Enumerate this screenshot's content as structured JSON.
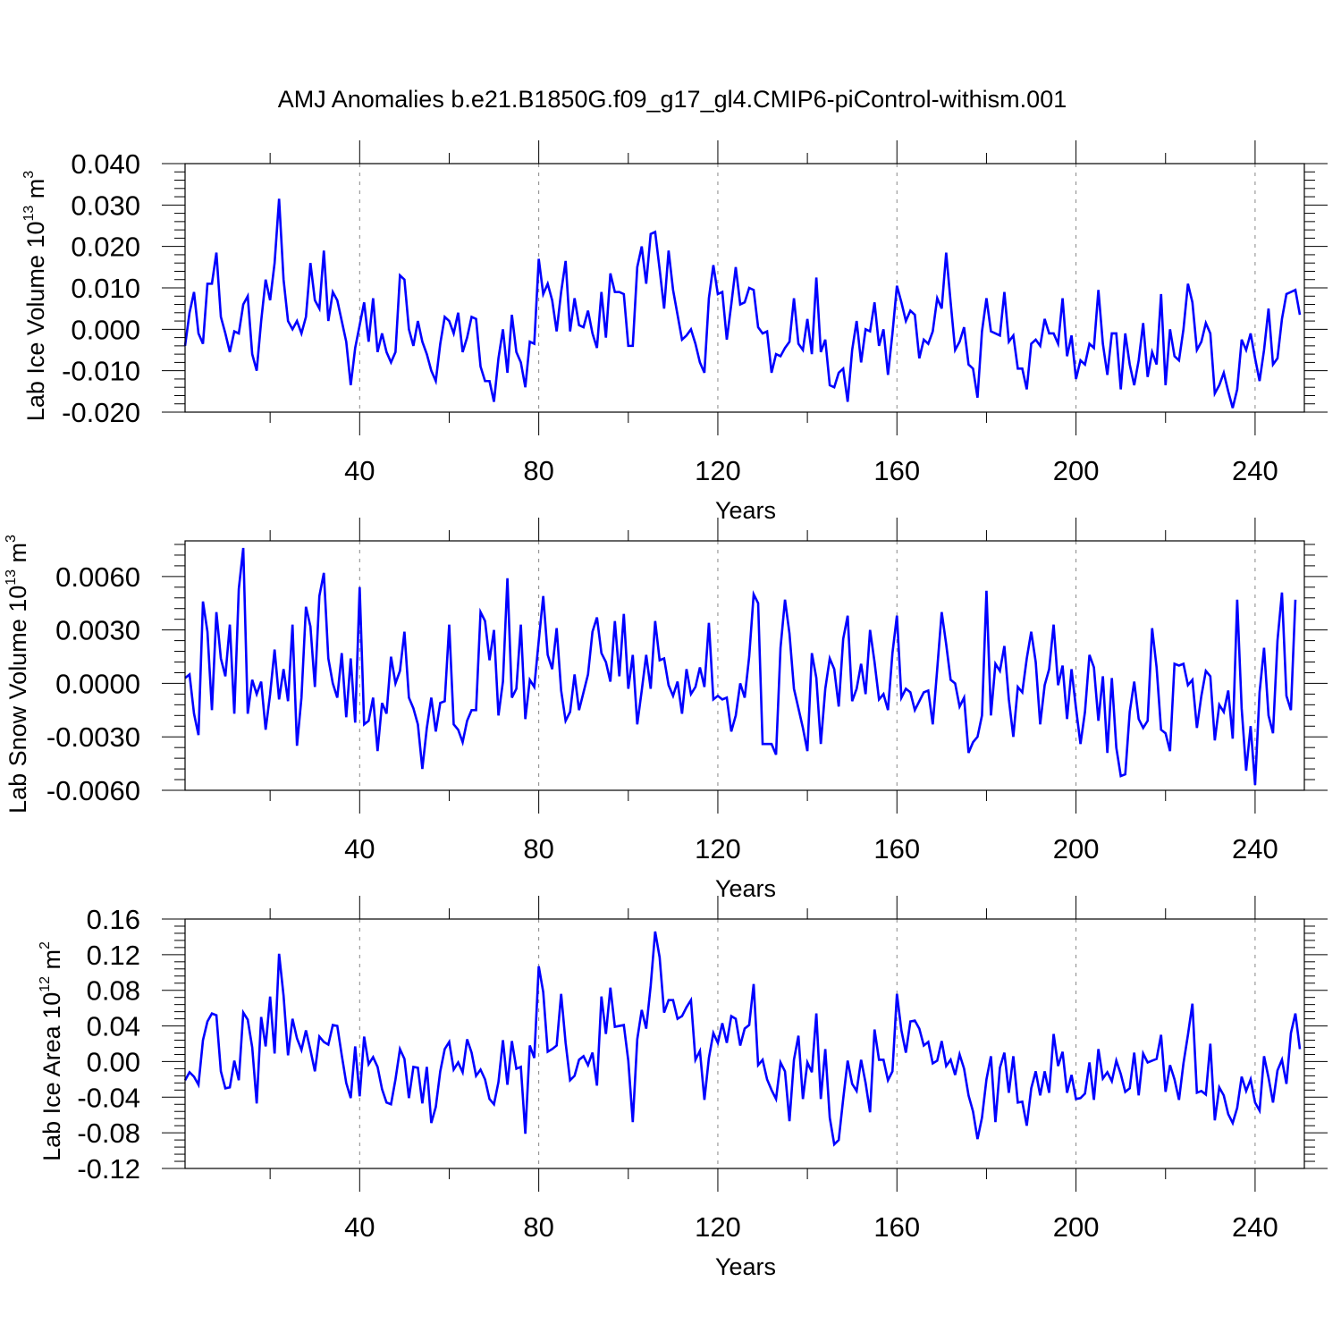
{
  "title": "AMJ Anomalies b.e21.B1850G.f09_g17_gl4.CMIP6-piControl-withism.001",
  "colors": {
    "series": "#0000ff",
    "axis": "#000000",
    "grid": "#888888"
  },
  "chart_data": [
    {
      "type": "line",
      "ylabel": {
        "text": "Lab Ice Volume 10",
        "exp": "13",
        "unit": " m",
        "unit_exp": "3"
      },
      "xlabel": "Years",
      "xlim": [
        1,
        251
      ],
      "ylim": [
        -0.02,
        0.04
      ],
      "xticks": [
        "40",
        "80",
        "120",
        "160",
        "200",
        "240"
      ],
      "yticks": [
        {
          "v": -0.02,
          "label": "-0.020"
        },
        {
          "v": -0.01,
          "label": "-0.010"
        },
        {
          "v": 0.0,
          "label": "0.000"
        },
        {
          "v": 0.01,
          "label": "0.010"
        },
        {
          "v": 0.02,
          "label": "0.020"
        },
        {
          "v": 0.03,
          "label": "0.030"
        },
        {
          "v": 0.04,
          "label": "0.040"
        }
      ],
      "grid": "dashed vertical at 40,80,120,160,200,240",
      "values": [
        -0.004,
        0.004,
        0.009,
        -0.001,
        -0.0035,
        0.011,
        0.011,
        0.0185,
        0.003,
        -0.001,
        -0.0055,
        -0.0005,
        -0.001,
        0.006,
        0.008,
        -0.006,
        -0.01,
        0.002,
        0.012,
        0.007,
        0.016,
        0.0315,
        0.012,
        0.002,
        0.0,
        0.002,
        -0.001,
        0.003,
        0.016,
        0.007,
        0.005,
        0.019,
        0.002,
        0.009,
        0.007,
        0.002,
        -0.003,
        -0.0135,
        -0.0045,
        0.001,
        0.0065,
        -0.003,
        0.0075,
        -0.0055,
        -0.001,
        -0.0055,
        -0.008,
        -0.0055,
        0.013,
        0.012,
        0.0,
        -0.004,
        0.002,
        -0.003,
        -0.006,
        -0.01,
        -0.0125,
        -0.0035,
        0.003,
        0.002,
        -0.001,
        0.004,
        -0.0055,
        -0.002,
        0.003,
        0.0025,
        -0.009,
        -0.0125,
        -0.0125,
        -0.0175,
        -0.007,
        0.0,
        -0.0105,
        0.0035,
        -0.0055,
        -0.008,
        -0.014,
        -0.003,
        -0.0035,
        0.017,
        0.0085,
        0.011,
        0.007,
        -0.0005,
        0.009,
        0.0165,
        -0.0005,
        0.0075,
        0.001,
        0.0005,
        0.0045,
        -0.001,
        -0.0045,
        0.009,
        -0.002,
        0.0135,
        0.009,
        0.009,
        0.0085,
        -0.004,
        -0.004,
        0.015,
        0.02,
        0.011,
        0.023,
        0.0235,
        0.0145,
        0.005,
        0.019,
        0.0095,
        0.0035,
        -0.0025,
        -0.0015,
        0.0,
        -0.0035,
        -0.008,
        -0.0105,
        0.0075,
        0.0155,
        0.0085,
        0.009,
        -0.0025,
        0.006,
        0.015,
        0.006,
        0.0065,
        0.01,
        0.0095,
        0.0005,
        -0.001,
        -0.0005,
        -0.0105,
        -0.006,
        -0.0065,
        -0.0045,
        -0.003,
        0.0075,
        -0.0035,
        -0.005,
        0.0025,
        -0.006,
        0.0125,
        -0.0055,
        -0.0025,
        -0.0135,
        -0.014,
        -0.0105,
        -0.0095,
        -0.0175,
        -0.005,
        0.002,
        -0.008,
        0.0,
        -0.0005,
        0.0065,
        -0.004,
        0.0,
        -0.011,
        -0.001,
        0.0105,
        0.0065,
        0.002,
        0.0045,
        0.0035,
        -0.007,
        -0.0025,
        -0.0035,
        -0.0005,
        0.0075,
        0.005,
        0.0185,
        0.0065,
        -0.005,
        -0.003,
        0.0005,
        -0.0085,
        -0.0095,
        -0.0165,
        -0.0005,
        0.0075,
        -0.0005,
        -0.001,
        -0.0015,
        0.009,
        -0.003,
        -0.0015,
        -0.0095,
        -0.0095,
        -0.0145,
        -0.0035,
        -0.0025,
        -0.004,
        0.0025,
        -0.001,
        -0.001,
        -0.0035,
        0.0075,
        -0.0065,
        -0.0015,
        -0.012,
        -0.0075,
        -0.0085,
        -0.0035,
        -0.0045,
        0.0095,
        -0.0035,
        -0.011,
        -0.001,
        -0.001,
        -0.0145,
        -0.001,
        -0.0085,
        -0.0135,
        -0.0075,
        0.0015,
        -0.0115,
        -0.0055,
        -0.0085,
        0.0085,
        -0.0135,
        0.0,
        -0.0065,
        -0.0075,
        0.0,
        0.011,
        0.0065,
        -0.005,
        -0.003,
        0.0015,
        -0.001,
        -0.0155,
        -0.0135,
        -0.0105,
        -0.015,
        -0.019,
        -0.0145,
        -0.0025,
        -0.005,
        -0.001,
        -0.007,
        -0.0125,
        -0.005,
        0.005,
        -0.0085,
        -0.007,
        0.0025,
        0.0085,
        0.009,
        0.0095,
        0.0035
      ]
    },
    {
      "type": "line",
      "ylabel": {
        "text": "Lab Snow Volume 10",
        "exp": "13",
        "unit": " m",
        "unit_exp": "3"
      },
      "xlabel": "Years",
      "xlim": [
        1,
        251
      ],
      "ylim": [
        -0.006,
        0.008
      ],
      "xticks": [
        "40",
        "80",
        "120",
        "160",
        "200",
        "240"
      ],
      "yticks": [
        {
          "v": -0.006,
          "label": "-0.0060"
        },
        {
          "v": -0.003,
          "label": "-0.0030"
        },
        {
          "v": 0.0,
          "label": "0.0000"
        },
        {
          "v": 0.003,
          "label": "0.0030"
        },
        {
          "v": 0.006,
          "label": "0.0060"
        }
      ],
      "grid": "dashed vertical at 40,80,120,160,200,240",
      "values": [
        0.0003,
        0.0005,
        -0.0017,
        -0.0029,
        0.0046,
        0.0029,
        -0.0015,
        0.004,
        0.0014,
        0.0004,
        0.0033,
        -0.0017,
        0.0053,
        0.0076,
        -0.0017,
        0.0002,
        -0.0006,
        0.0001,
        -0.0026,
        -0.0006,
        0.0019,
        -0.0009,
        0.0008,
        -0.001,
        0.0033,
        -0.0035,
        -0.0008,
        0.0043,
        0.0032,
        -0.0002,
        0.0049,
        0.0062,
        0.0014,
        0.0,
        -0.0008,
        0.0017,
        -0.0019,
        0.0014,
        -0.0022,
        0.0054,
        -0.0023,
        -0.0021,
        -0.0008,
        -0.0038,
        -0.0011,
        -0.0017,
        0.0015,
        0.0,
        0.0007,
        0.0029,
        -0.0008,
        -0.0014,
        -0.0023,
        -0.0048,
        -0.0025,
        -0.0008,
        -0.0027,
        -0.0011,
        -0.001,
        0.0033,
        -0.0023,
        -0.0026,
        -0.0033,
        -0.0021,
        -0.0015,
        -0.0015,
        0.004,
        0.0035,
        0.0013,
        0.003,
        -0.0018,
        0.0001,
        0.0059,
        -0.0008,
        -0.0003,
        0.0033,
        -0.002,
        0.0002,
        -0.0002,
        0.0024,
        0.0049,
        0.0016,
        0.0008,
        0.0031,
        -0.0004,
        -0.0021,
        -0.0016,
        0.0005,
        -0.0015,
        -0.0005,
        0.0005,
        0.0029,
        0.0037,
        0.0017,
        0.0012,
        0.0001,
        0.0035,
        0.0004,
        0.0039,
        -0.0003,
        0.0016,
        -0.0023,
        -0.0004,
        0.0016,
        -0.0003,
        0.0035,
        0.0013,
        0.0014,
        -0.0001,
        -0.0007,
        0.0001,
        -0.0017,
        0.0008,
        -0.0006,
        -0.0002,
        0.0009,
        -0.0002,
        0.0034,
        -0.0009,
        -0.0007,
        -0.0009,
        -0.0008,
        -0.0027,
        -0.0018,
        0.0,
        -0.0008,
        0.0015,
        0.005,
        0.0045,
        -0.0034,
        -0.0034,
        -0.0034,
        -0.004,
        0.002,
        0.0047,
        0.0028,
        -0.0003,
        -0.0014,
        -0.0025,
        -0.0038,
        0.0017,
        0.0003,
        -0.0034,
        -0.0003,
        0.0014,
        0.0008,
        -0.0013,
        0.0025,
        0.0038,
        -0.001,
        -0.0003,
        0.0011,
        -0.0006,
        0.003,
        0.0012,
        -0.0009,
        -0.0006,
        -0.0015,
        0.0017,
        0.0038,
        -0.0008,
        -0.0003,
        -0.0005,
        -0.0015,
        -0.001,
        -0.0005,
        -0.0004,
        -0.0023,
        0.0008,
        0.004,
        0.0022,
        0.0002,
        0.0,
        -0.0013,
        -0.0008,
        -0.0039,
        -0.0033,
        -0.003,
        -0.0018,
        0.0052,
        -0.0018,
        0.0011,
        0.0007,
        0.0021,
        -0.0009,
        -0.003,
        -0.0002,
        -0.0005,
        0.0014,
        0.0029,
        0.0012,
        -0.0023,
        -0.0001,
        0.0008,
        0.0033,
        -0.0001,
        0.001,
        -0.002,
        0.0008,
        -0.0014,
        -0.0034,
        -0.0016,
        0.0016,
        0.0009,
        -0.0021,
        0.0004,
        -0.0039,
        0.0003,
        -0.0036,
        -0.0052,
        -0.0051,
        -0.0016,
        0.0001,
        -0.002,
        -0.0025,
        -0.0021,
        0.0031,
        0.0009,
        -0.0026,
        -0.0028,
        -0.0038,
        0.0011,
        0.001,
        0.0011,
        -0.0001,
        0.0002,
        -0.0025,
        -0.0007,
        0.0007,
        0.0004,
        -0.0032,
        -0.0012,
        -0.0016,
        -0.0004,
        -0.0031,
        0.0047,
        -0.0014,
        -0.0049,
        -0.0024,
        -0.0057,
        -0.0005,
        0.002,
        -0.0018,
        -0.0028,
        0.0024,
        0.0051,
        -0.0007,
        -0.0015,
        0.0047
      ]
    },
    {
      "type": "line",
      "ylabel": {
        "text": "Lab Ice Area 10",
        "exp": "12",
        "unit": " m",
        "unit_exp": "2"
      },
      "xlabel": "Years",
      "xlim": [
        1,
        251
      ],
      "ylim": [
        -0.12,
        0.16
      ],
      "xticks": [
        "40",
        "80",
        "120",
        "160",
        "200",
        "240"
      ],
      "yticks": [
        {
          "v": -0.12,
          "label": "-0.12"
        },
        {
          "v": -0.08,
          "label": "-0.08"
        },
        {
          "v": -0.04,
          "label": "-0.04"
        },
        {
          "v": 0.0,
          "label": "0.00"
        },
        {
          "v": 0.04,
          "label": "0.04"
        },
        {
          "v": 0.08,
          "label": "0.08"
        },
        {
          "v": 0.12,
          "label": "0.12"
        },
        {
          "v": 0.16,
          "label": "0.16"
        }
      ],
      "grid": "dashed vertical at 40,80,120,160,200,240",
      "values": [
        -0.021,
        -0.012,
        -0.017,
        -0.026,
        0.024,
        0.045,
        0.054,
        0.052,
        -0.011,
        -0.03,
        -0.029,
        0.001,
        -0.021,
        0.055,
        0.047,
        0.016,
        -0.047,
        0.05,
        0.017,
        0.073,
        0.009,
        0.121,
        0.074,
        0.007,
        0.048,
        0.026,
        0.013,
        0.035,
        0.013,
        -0.011,
        0.028,
        0.022,
        0.019,
        0.041,
        0.04,
        0.007,
        -0.024,
        -0.041,
        0.017,
        -0.039,
        0.028,
        -0.003,
        0.005,
        -0.006,
        -0.031,
        -0.046,
        -0.048,
        -0.02,
        0.014,
        0.003,
        -0.041,
        -0.006,
        -0.007,
        -0.047,
        -0.006,
        -0.069,
        -0.051,
        -0.011,
        0.014,
        0.022,
        -0.009,
        -0.001,
        -0.012,
        0.025,
        0.01,
        -0.016,
        -0.009,
        -0.02,
        -0.042,
        -0.048,
        -0.023,
        0.024,
        -0.026,
        0.023,
        -0.008,
        -0.006,
        -0.081,
        0.018,
        0.004,
        0.107,
        0.078,
        0.011,
        0.014,
        0.018,
        0.076,
        0.021,
        -0.021,
        -0.016,
        0.002,
        0.006,
        -0.004,
        0.01,
        -0.027,
        0.073,
        0.031,
        0.083,
        0.039,
        0.04,
        0.041,
        0.001,
        -0.068,
        0.025,
        0.058,
        0.037,
        0.085,
        0.146,
        0.117,
        0.055,
        0.069,
        0.069,
        0.048,
        0.051,
        0.061,
        0.069,
        0.002,
        0.012,
        -0.043,
        0.004,
        0.032,
        0.021,
        0.043,
        0.021,
        0.051,
        0.048,
        0.018,
        0.037,
        0.041,
        0.087,
        -0.004,
        0.002,
        -0.02,
        -0.032,
        -0.042,
        -0.001,
        -0.011,
        -0.067,
        0.002,
        0.029,
        -0.042,
        -0.001,
        -0.012,
        0.054,
        -0.042,
        0.014,
        -0.063,
        -0.093,
        -0.088,
        -0.042,
        0.001,
        -0.025,
        -0.033,
        0.002,
        -0.024,
        -0.057,
        0.036,
        0.002,
        0.002,
        -0.021,
        -0.011,
        0.076,
        0.035,
        0.01,
        0.045,
        0.046,
        0.037,
        0.018,
        0.022,
        -0.002,
        0.001,
        0.023,
        -0.005,
        0.002,
        -0.015,
        0.008,
        -0.008,
        -0.038,
        -0.056,
        -0.087,
        -0.063,
        -0.02,
        0.006,
        -0.068,
        -0.007,
        0.01,
        -0.035,
        0.006,
        -0.046,
        -0.045,
        -0.072,
        -0.03,
        -0.011,
        -0.038,
        -0.011,
        -0.035,
        0.031,
        -0.005,
        0.011,
        -0.035,
        -0.015,
        -0.042,
        -0.041,
        -0.036,
        -0.001,
        -0.043,
        0.014,
        -0.019,
        -0.012,
        -0.022,
        0.001,
        -0.014,
        -0.034,
        -0.03,
        0.01,
        -0.038,
        0.009,
        -0.001,
        0.001,
        0.003,
        0.03,
        -0.034,
        -0.004,
        -0.02,
        -0.043,
        -0.002,
        0.03,
        0.065,
        -0.035,
        -0.033,
        -0.037,
        0.02,
        -0.066,
        -0.029,
        -0.038,
        -0.059,
        -0.069,
        -0.052,
        -0.017,
        -0.033,
        -0.02,
        -0.046,
        -0.055,
        0.006,
        -0.018,
        -0.046,
        -0.01,
        0.002,
        -0.025,
        0.032,
        0.054,
        0.014
      ]
    }
  ]
}
